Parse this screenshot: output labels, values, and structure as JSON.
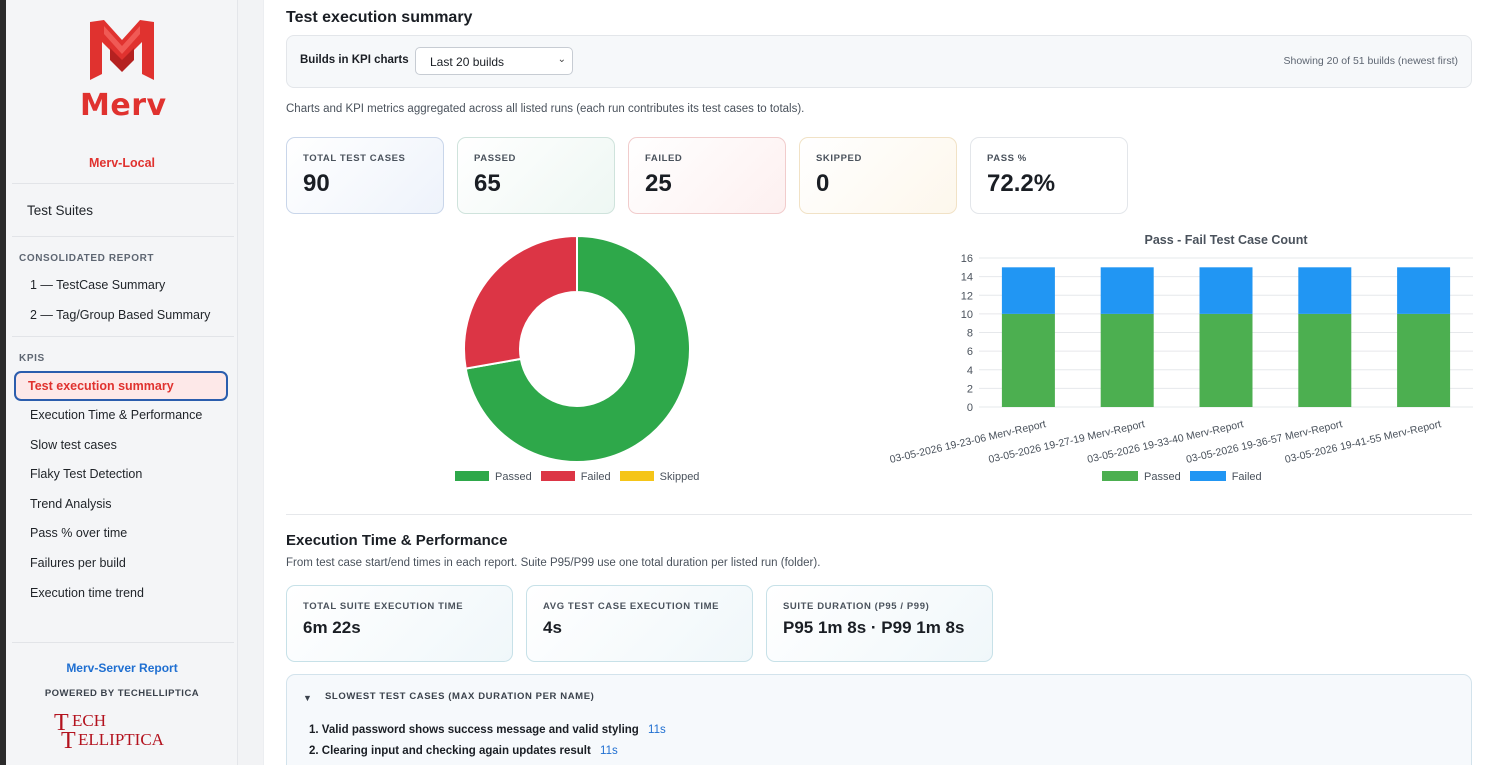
{
  "brand": {
    "name": "Merv",
    "environment": "Merv-Local",
    "colors": {
      "brand_red": "#e0322f",
      "link_blue": "#1f6fd1",
      "active_border": "#2b5dad"
    }
  },
  "sidebar": {
    "top_item": "Test Suites",
    "sections": [
      {
        "title": "CONSOLIDATED REPORT",
        "items": [
          "1 — TestCase Summary",
          "2 — Tag/Group Based Summary"
        ]
      },
      {
        "title": "KPIS",
        "items": [
          "Test execution summary",
          "Execution Time & Performance",
          "Slow test cases",
          "Flaky Test Detection",
          "Trend Analysis",
          "Pass % over time",
          "Failures per build",
          "Execution time trend"
        ]
      }
    ],
    "active_item": "Test execution summary",
    "footer_link": "Merv-Server Report",
    "powered_by": "POWERED BY TECHELLIPTICA",
    "partner_logo_text": [
      "ECH",
      "ELLIPTICA"
    ]
  },
  "summary": {
    "title": "Test execution summary",
    "filter_label": "Builds in KPI charts",
    "filter_value": "Last 20 builds",
    "showing": "Showing 20 of 51 builds (newest first)",
    "description": "Charts and KPI metrics aggregated across all listed runs (each run contributes its test cases to totals).",
    "kpis": [
      {
        "label": "TOTAL TEST CASES",
        "value": "90"
      },
      {
        "label": "PASSED",
        "value": "65"
      },
      {
        "label": "FAILED",
        "value": "25"
      },
      {
        "label": "SKIPPED",
        "value": "0"
      },
      {
        "label": "PASS %",
        "value": "72.2%"
      }
    ]
  },
  "chart_data": [
    {
      "type": "pie",
      "title": "",
      "categories": [
        "Passed",
        "Failed",
        "Skipped"
      ],
      "values": [
        65,
        25,
        0
      ],
      "colors": [
        "#2ea84a",
        "#dc3545",
        "#f5c518"
      ],
      "legend": "bottom"
    },
    {
      "type": "bar",
      "title": "Pass - Fail Test Case Count",
      "categories": [
        "03-05-2026 19-23-06 Merv-Report",
        "03-05-2026 19-27-19 Merv-Report",
        "03-05-2026 19-33-40 Merv-Report",
        "03-05-2026 19-36-57 Merv-Report",
        "03-05-2026 19-41-55 Merv-Report"
      ],
      "series": [
        {
          "name": "Passed",
          "values": [
            10,
            10,
            10,
            10,
            10
          ],
          "color": "#4caf50"
        },
        {
          "name": "Failed",
          "values": [
            5,
            5,
            5,
            5,
            5
          ],
          "color": "#2196f3"
        }
      ],
      "stacked": true,
      "ylim": [
        0,
        16
      ],
      "yticks": [
        0,
        2,
        4,
        6,
        8,
        10,
        12,
        14,
        16
      ],
      "grid": true,
      "legend": "bottom"
    }
  ],
  "performance": {
    "title": "Execution Time & Performance",
    "description": "From test case start/end times in each report. Suite P95/P99 use one total duration per listed run (folder).",
    "kpis": [
      {
        "label": "TOTAL SUITE EXECUTION TIME",
        "value": "6m 22s"
      },
      {
        "label": "AVG TEST CASE EXECUTION TIME",
        "value": "4s"
      },
      {
        "label": "SUITE DURATION (P95 / P99)",
        "value": "P95 1m 8s · P99 1m 8s"
      }
    ],
    "slowest_title": "SLOWEST TEST CASES (MAX DURATION PER NAME)",
    "slowest": [
      {
        "rank": "1.",
        "name": "Valid password shows success message and valid styling",
        "duration": "11s"
      },
      {
        "rank": "2.",
        "name": "Clearing input and checking again updates result",
        "duration": "11s"
      }
    ]
  }
}
